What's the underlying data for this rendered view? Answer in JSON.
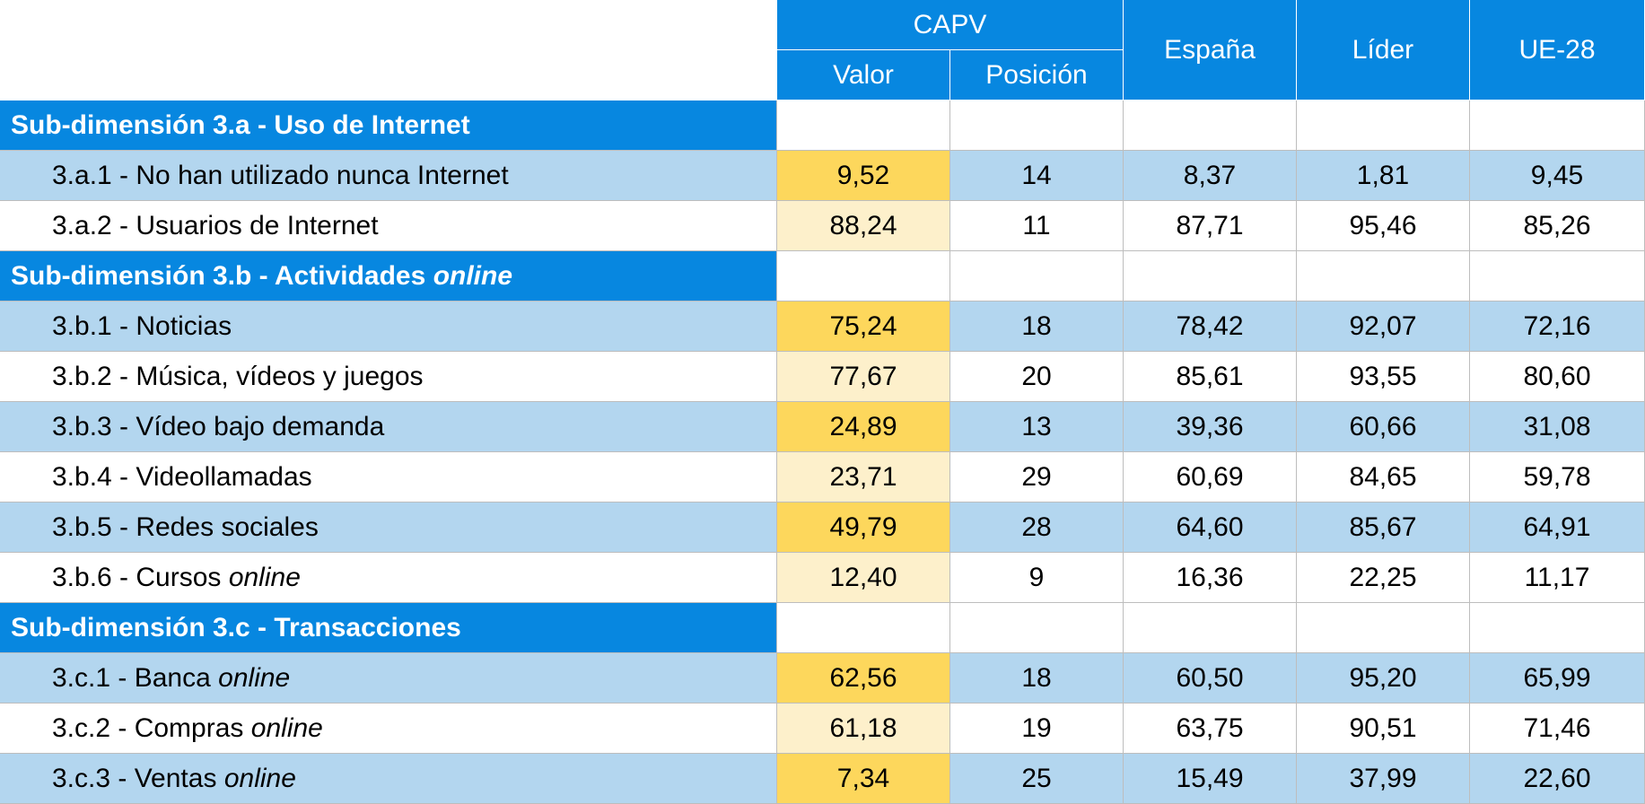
{
  "header": {
    "group": "CAPV",
    "sub_columns": [
      "Valor",
      "Posición"
    ],
    "columns": [
      "España",
      "Líder",
      "UE-28"
    ]
  },
  "sections": [
    {
      "title": {
        "text": "Sub-dimensión 3.a - Uso de Internet"
      },
      "rows": [
        {
          "label": {
            "text": "3.a.1 - No han utilizado nunca Internet"
          },
          "values": [
            "9,52",
            "14",
            "8,37",
            "1,81",
            "9,45"
          ]
        },
        {
          "label": {
            "text": "3.a.2 - Usuarios de Internet"
          },
          "values": [
            "88,24",
            "11",
            "87,71",
            "95,46",
            "85,26"
          ]
        }
      ]
    },
    {
      "title": {
        "text": "Sub-dimensión 3.b - Actividades",
        "em": "online"
      },
      "rows": [
        {
          "label": {
            "text": "3.b.1 - Noticias"
          },
          "values": [
            "75,24",
            "18",
            "78,42",
            "92,07",
            "72,16"
          ]
        },
        {
          "label": {
            "text": "3.b.2 - Música, vídeos y juegos"
          },
          "values": [
            "77,67",
            "20",
            "85,61",
            "93,55",
            "80,60"
          ]
        },
        {
          "label": {
            "text": "3.b.3 - Vídeo bajo demanda"
          },
          "values": [
            "24,89",
            "13",
            "39,36",
            "60,66",
            "31,08"
          ]
        },
        {
          "label": {
            "text": "3.b.4 - Videollamadas"
          },
          "values": [
            "23,71",
            "29",
            "60,69",
            "84,65",
            "59,78"
          ]
        },
        {
          "label": {
            "text": "3.b.5 - Redes sociales"
          },
          "values": [
            "49,79",
            "28",
            "64,60",
            "85,67",
            "64,91"
          ]
        },
        {
          "label": {
            "text": "3.b.6 - Cursos",
            "em": "online"
          },
          "values": [
            "12,40",
            "9",
            "16,36",
            "22,25",
            "11,17"
          ]
        }
      ]
    },
    {
      "title": {
        "text": "Sub-dimensión 3.c - Transacciones"
      },
      "rows": [
        {
          "label": {
            "text": "3.c.1 - Banca",
            "em": "online"
          },
          "values": [
            "62,56",
            "18",
            "60,50",
            "95,20",
            "65,99"
          ]
        },
        {
          "label": {
            "text": "3.c.2 - Compras",
            "em": "online"
          },
          "values": [
            "61,18",
            "19",
            "63,75",
            "90,51",
            "71,46"
          ]
        },
        {
          "label": {
            "text": "3.c.3 - Ventas",
            "em": "online"
          },
          "values": [
            "7,34",
            "25",
            "15,49",
            "37,99",
            "22,60"
          ]
        }
      ]
    }
  ]
}
